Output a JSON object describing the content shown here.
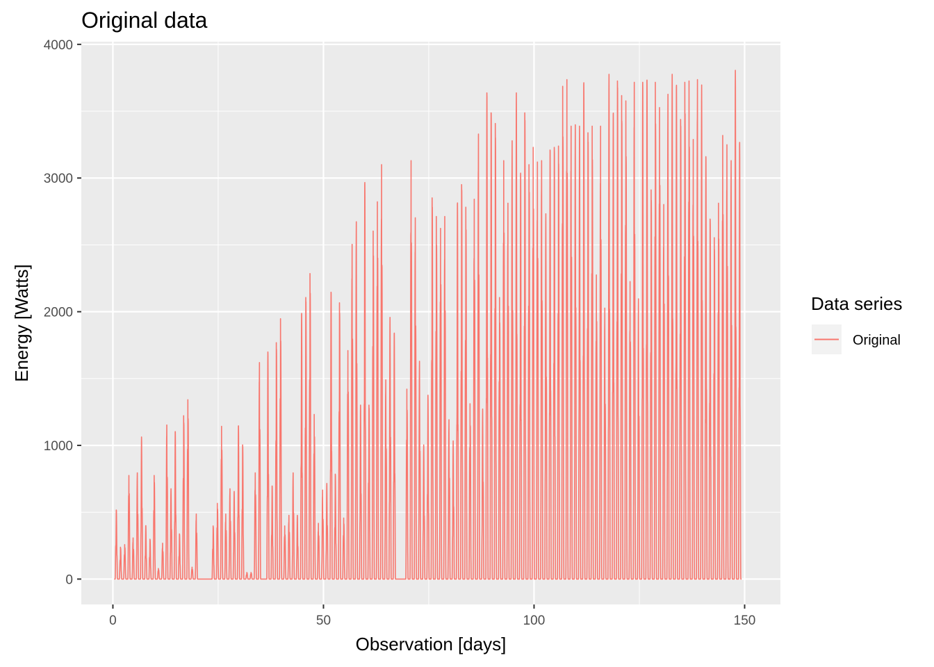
{
  "chart_data": {
    "type": "line",
    "title": "Original data",
    "xlabel": "Observation [days]",
    "ylabel": "Energy [Watts]",
    "xlim": [
      -7.5,
      158.5
    ],
    "ylim": [
      -190,
      4020
    ],
    "x_ticks": [
      0,
      50,
      100,
      150
    ],
    "x_tick_labels": [
      "0",
      "50",
      "100",
      "150"
    ],
    "y_ticks": [
      0,
      1000,
      2000,
      3000,
      4000
    ],
    "y_tick_labels": [
      "0",
      "1000",
      "2000",
      "3000",
      "4000"
    ],
    "grid": true,
    "legend": {
      "title": "Data series",
      "placement": "right",
      "entries": [
        "Original"
      ]
    },
    "colors": {
      "series": "#F8766D",
      "panel": "#EBEBEB",
      "grid": "#FFFFFF"
    },
    "series": [
      {
        "name": "Original",
        "daily_peaks_watts": [
          520,
          240,
          260,
          780,
          310,
          800,
          1070,
          400,
          300,
          780,
          80,
          270,
          1160,
          680,
          1110,
          340,
          1230,
          1350,
          90,
          490,
          0,
          0,
          0,
          400,
          570,
          1150,
          490,
          680,
          660,
          1150,
          1010,
          50,
          50,
          800,
          1630,
          0,
          1710,
          700,
          1780,
          1960,
          400,
          480,
          800,
          480,
          1990,
          2120,
          2300,
          1240,
          420,
          670,
          720,
          2160,
          790,
          2080,
          460,
          1720,
          2520,
          2690,
          1310,
          2970,
          1310,
          2620,
          2840,
          3120,
          1500,
          1970,
          1850,
          0,
          0,
          1430,
          3150,
          2720,
          1640,
          1010,
          1380,
          2870,
          2730,
          2640,
          2730,
          1200,
          1040,
          2820,
          2970,
          2800,
          1320,
          2860,
          3350,
          1280,
          3660,
          3510,
          3430,
          2120,
          3150,
          2830,
          3300,
          3660,
          3040,
          3510,
          3120,
          3250,
          3140,
          3150,
          2750,
          3230,
          3250,
          3260,
          3710,
          3760,
          3410,
          3420,
          3410,
          3720,
          3360,
          3410,
          2290,
          3410,
          2040,
          3800,
          3500,
          3750,
          3640,
          3600,
          2240,
          3740,
          2110,
          3740,
          3750,
          2930,
          3740,
          3550,
          2820,
          3650,
          3800,
          3700,
          3460,
          3740,
          3750,
          3310,
          3760,
          3720,
          3180,
          2710,
          2570,
          2830,
          3340,
          3270,
          3150,
          3830,
          3270
        ]
      }
    ]
  }
}
